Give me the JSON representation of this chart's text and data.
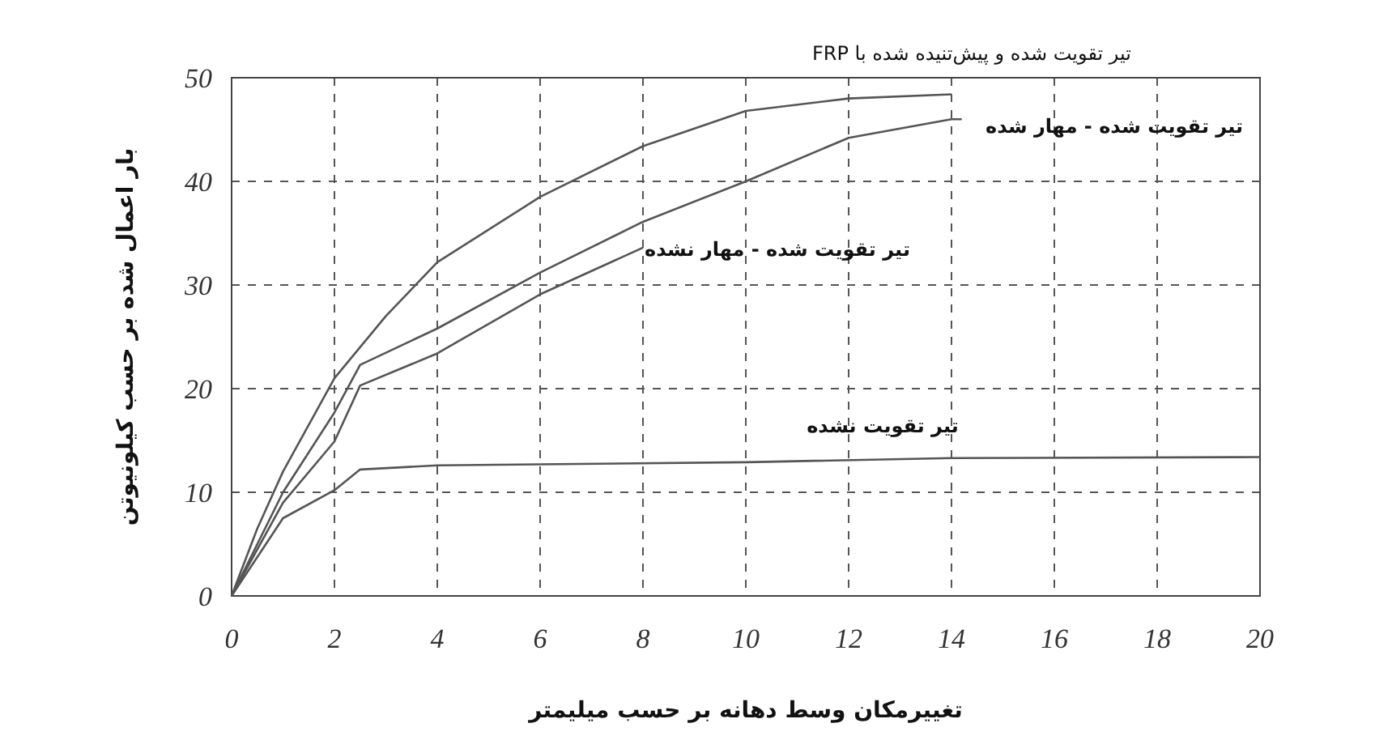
{
  "chart_data": {
    "type": "line",
    "xlabel": "تغییرمکان وسط دهانه بر حسب میلیمتر",
    "ylabel": "بار اعمال شده بر حسب کیلونیوتن",
    "xlim": [
      0,
      20
    ],
    "ylim": [
      0,
      50
    ],
    "xticks": [
      0,
      2,
      4,
      6,
      8,
      10,
      12,
      14,
      16,
      18,
      20
    ],
    "yticks": [
      0,
      10,
      20,
      30,
      40,
      50
    ],
    "grid": true,
    "marker": "none",
    "line_style": "solid",
    "series": [
      {
        "name": "تیر تقویت شده و پیش‌تنیده شده با FRP",
        "color": "#555555",
        "x": [
          0,
          0.5,
          1,
          2,
          3,
          4,
          6,
          8,
          10,
          12,
          14
        ],
        "values": [
          0,
          6.5,
          12,
          21,
          27,
          32.2,
          38.5,
          43.4,
          46.8,
          48,
          48.4
        ]
      },
      {
        "name": "تیر تقویت شده - مهار شده",
        "color": "#555555",
        "x": [
          0,
          1,
          2,
          2.5,
          4,
          6,
          8,
          10,
          12,
          14,
          14.2
        ],
        "values": [
          0,
          10,
          17.7,
          22.3,
          25.8,
          31.2,
          36.1,
          40,
          44.2,
          46,
          46
        ]
      },
      {
        "name": "تیر تقویت شده - مهار نشده",
        "color": "#555555",
        "x": [
          0,
          1,
          2,
          2.5,
          4,
          6,
          8
        ],
        "values": [
          0,
          9,
          14.9,
          20.3,
          23.4,
          29.1,
          33.6
        ]
      },
      {
        "name": "تیر تقویت نشده",
        "color": "#555555",
        "x": [
          0,
          1,
          2,
          2.5,
          4,
          10,
          14,
          20
        ],
        "values": [
          0,
          7.5,
          10.2,
          12.2,
          12.6,
          12.9,
          13.3,
          13.4
        ]
      }
    ]
  }
}
